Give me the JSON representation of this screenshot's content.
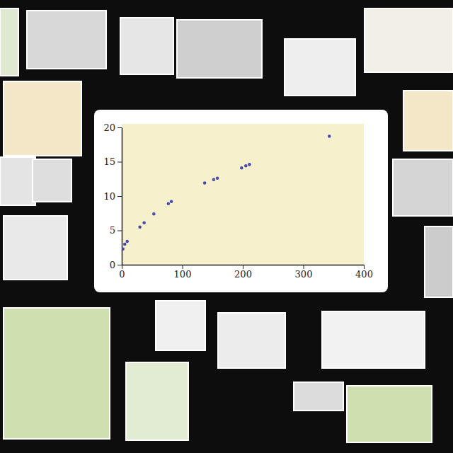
{
  "chart_data": {
    "type": "scatter",
    "x": [
      2,
      5,
      9,
      30,
      37,
      53,
      77,
      82,
      137,
      152,
      158,
      198,
      205,
      211,
      343
    ],
    "values": [
      2.3,
      3.0,
      3.4,
      5.5,
      6.1,
      7.4,
      8.9,
      9.2,
      11.9,
      12.4,
      12.6,
      14.1,
      14.4,
      14.6,
      18.7
    ],
    "color": "#4b4bab",
    "marker": "circle",
    "grid": false,
    "xlim": [
      0,
      400
    ],
    "xticks": [
      0,
      100,
      200,
      300,
      400
    ],
    "ylim": [
      0,
      20
    ],
    "yticks": [
      0,
      5,
      10,
      15,
      20
    ]
  }
}
